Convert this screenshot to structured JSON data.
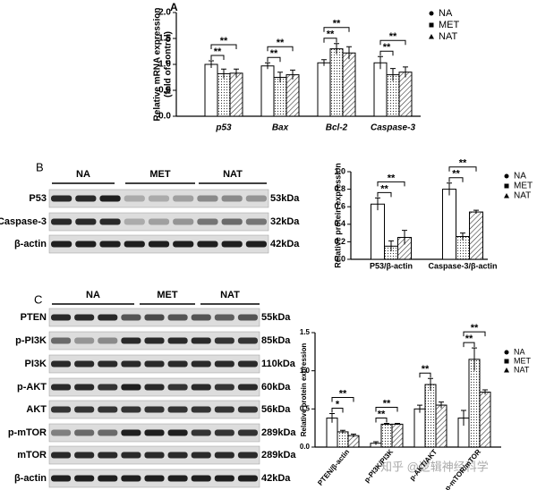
{
  "chart_data": [
    {
      "type": "bar",
      "panel": "A",
      "ylabel": [
        "Relative mRNA expression",
        "(fold of control)"
      ],
      "categories": [
        "p53",
        "Bax",
        "Bcl-2",
        "Caspase-3"
      ],
      "series": [
        {
          "name": "NA",
          "pattern": "white",
          "marker": "circle",
          "values": [
            1.0,
            0.97,
            1.03,
            1.03
          ],
          "errors": [
            0.07,
            0.06,
            0.06,
            0.12
          ]
        },
        {
          "name": "MET",
          "pattern": "dots",
          "marker": "square",
          "values": [
            0.82,
            0.75,
            1.3,
            0.8
          ],
          "errors": [
            0.09,
            0.1,
            0.1,
            0.12
          ]
        },
        {
          "name": "NAT",
          "pattern": "hatch",
          "marker": "triangle",
          "values": [
            0.83,
            0.8,
            1.22,
            0.85
          ],
          "errors": [
            0.08,
            0.09,
            0.12,
            0.1
          ]
        }
      ],
      "ylim": [
        0,
        2.0
      ],
      "yticks": [
        {
          "value": 0,
          "label": "0.0"
        },
        0.5,
        {
          "value": 1,
          "label": "1.0"
        },
        1.5,
        {
          "value": 2,
          "label": "2.0"
        }
      ],
      "annotations": [
        "**",
        "**",
        "**",
        "**",
        "**",
        "**",
        "**",
        "**"
      ]
    },
    {
      "type": "bar",
      "ylabel": [
        "Relative protein expression"
      ],
      "categories": [
        "P53/β-actin",
        "Caspase-3/β-actin"
      ],
      "series": [
        {
          "name": "NA",
          "pattern": "white",
          "marker": "circle",
          "values": [
            0.63,
            0.8
          ],
          "errors": [
            0.07,
            0.07
          ]
        },
        {
          "name": "MET",
          "pattern": "dots",
          "marker": "square",
          "values": [
            0.15,
            0.26
          ],
          "errors": [
            0.06,
            0.04
          ]
        },
        {
          "name": "NAT",
          "pattern": "hatch",
          "marker": "triangle",
          "values": [
            0.25,
            0.54
          ],
          "errors": [
            0.08,
            0.02
          ]
        }
      ],
      "ylim": [
        0,
        1.0
      ],
      "yticks": [
        {
          "value": 0,
          "label": "0.0"
        },
        0.2,
        0.4,
        0.6,
        0.8,
        {
          "value": 1,
          "label": "1.0"
        }
      ],
      "annotations": [
        "**",
        "**",
        "**",
        "**"
      ]
    },
    {
      "type": "bar",
      "ylabel": [
        "Relative protein expression"
      ],
      "categories": [
        "PTEN/β-actin",
        "p-PI3K/PI3K",
        "p-AKT/AKT",
        "p-mTOR/mTOR"
      ],
      "series": [
        {
          "name": "NA",
          "pattern": "white",
          "marker": "circle",
          "values": [
            0.38,
            0.05,
            0.5,
            0.38
          ],
          "errors": [
            0.06,
            0.02,
            0.05,
            0.1
          ]
        },
        {
          "name": "MET",
          "pattern": "dots",
          "marker": "square",
          "values": [
            0.2,
            0.3,
            0.82,
            1.15
          ],
          "errors": [
            0.02,
            0.01,
            0.08,
            0.15
          ]
        },
        {
          "name": "NAT",
          "pattern": "hatch",
          "marker": "triangle",
          "values": [
            0.15,
            0.3,
            0.55,
            0.72
          ],
          "errors": [
            0.02,
            0.01,
            0.04,
            0.03
          ]
        }
      ],
      "ylim": [
        0,
        1.5
      ],
      "yticks": [
        {
          "value": 0,
          "label": "0.0"
        },
        0.5,
        {
          "value": 1,
          "label": "1.0"
        },
        1.5
      ],
      "annotations": [
        "*",
        "**",
        "**",
        "**",
        "**",
        "**",
        "**"
      ]
    }
  ],
  "blots": [
    {
      "panel": "B",
      "groups": [
        "NA",
        "MET",
        "NAT"
      ],
      "rows": [
        {
          "protein": "P53",
          "size": "53kDa"
        },
        {
          "protein": "Caspase-3",
          "size": "32kDa"
        },
        {
          "protein": "β-actin",
          "size": "42kDa"
        }
      ]
    },
    {
      "panel": "C",
      "groups": [
        "NA",
        "MET",
        "NAT"
      ],
      "rows": [
        {
          "protein": "PTEN",
          "size": "55kDa"
        },
        {
          "protein": "p-PI3K",
          "size": "85kDa"
        },
        {
          "protein": "PI3K",
          "size": "110kDa"
        },
        {
          "protein": "p-AKT",
          "size": "60kDa"
        },
        {
          "protein": "AKT",
          "size": "56kDa"
        },
        {
          "protein": "p-mTOR",
          "size": "289kDa"
        },
        {
          "protein": "mTOR",
          "size": "289kDa"
        },
        {
          "protein": "β-actin",
          "size": "42kDa"
        }
      ]
    }
  ],
  "watermark": "知乎 @逻辑神经科学"
}
